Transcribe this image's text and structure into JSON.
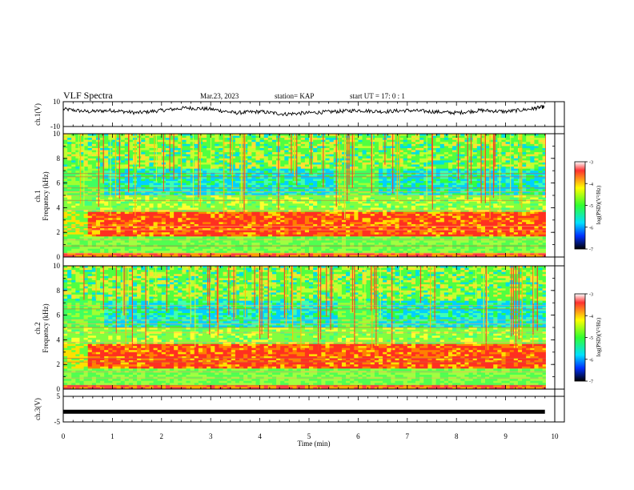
{
  "header": {
    "title": "VLF Spectra",
    "date": "Mar.23, 2023",
    "station": "station= KAP",
    "start": "start UT =  17: 0  : 1"
  },
  "chart_data": [
    {
      "type": "line",
      "panel": "ch1-waveform",
      "ylabel": "ch.1(V)",
      "ylim": [
        -10,
        10
      ],
      "yticks": [
        "10",
        "-10"
      ],
      "xlim": [
        0,
        10
      ],
      "series": [
        {
          "values_note": "waveform oscillating roughly between -2 and 8 V",
          "x": [
            0,
            0.5,
            1,
            1.5,
            2,
            2.5,
            3,
            3.5,
            4,
            4.5,
            5,
            5.5,
            6,
            6.5,
            7,
            7.5,
            8,
            8.5,
            9,
            9.5,
            9.8
          ],
          "y": [
            4,
            2,
            3,
            1,
            3,
            5,
            4,
            1,
            2,
            0,
            1,
            2,
            3,
            2,
            3,
            2,
            1,
            3,
            2,
            4,
            6
          ]
        }
      ]
    },
    {
      "type": "heatmap",
      "panel": "ch1-spectrogram",
      "ylabel_top": "ch.1",
      "ylabel": "Frequency (kHz)",
      "ylim": [
        0,
        10
      ],
      "yticks": [
        "0",
        "2",
        "4",
        "6",
        "8",
        "10"
      ],
      "xlim": [
        0,
        10
      ],
      "colorbar": {
        "label": "log(PSD)(V²/Hz)",
        "range": [
          -7,
          -3
        ],
        "ticks": [
          "-3",
          "-4",
          "-5",
          "-6",
          "-7"
        ]
      }
    },
    {
      "type": "heatmap",
      "panel": "ch2-spectrogram",
      "ylabel_top": "ch.2",
      "ylabel": "Frequency (kHz)",
      "ylim": [
        0,
        10
      ],
      "yticks": [
        "0",
        "2",
        "4",
        "6",
        "8",
        "10"
      ],
      "xlim": [
        0,
        10
      ],
      "colorbar": {
        "label": "log(PSD)(V²/Hz)",
        "range": [
          -7,
          -3
        ],
        "ticks": [
          "-3",
          "-4",
          "-5",
          "-6",
          "-7"
        ]
      }
    },
    {
      "type": "line",
      "panel": "ch3-waveform",
      "ylabel": "ch.3(V)",
      "ylim": [
        -5,
        5
      ],
      "yticks": [
        "5",
        "-5"
      ],
      "xlim": [
        0,
        10
      ],
      "xlabel": "Time (min)",
      "xticks": [
        "0",
        "1",
        "2",
        "3",
        "4",
        "5",
        "6",
        "7",
        "8",
        "9",
        "10"
      ],
      "series": [
        {
          "x": [
            0,
            9.8
          ],
          "y": [
            -1,
            -1
          ]
        }
      ]
    }
  ]
}
